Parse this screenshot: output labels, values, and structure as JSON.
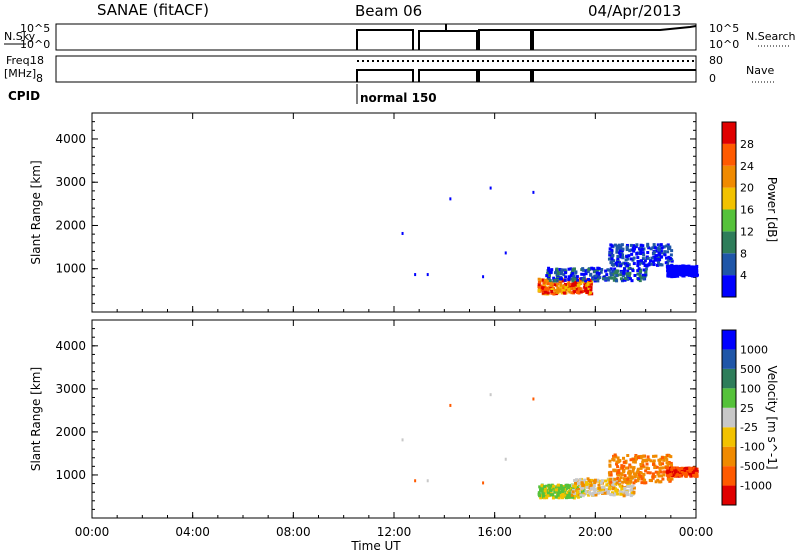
{
  "header": {
    "station": "SANAE (fitACF)",
    "beam": "Beam 06",
    "date": "04/Apr/2013"
  },
  "top_panels": {
    "nsky": {
      "label": "N.Sky",
      "tick_hi": "10^5",
      "tick_lo": "10^0"
    },
    "nsearch": {
      "label": "N.Search",
      "tick_hi": "10^5",
      "tick_lo": "10^0"
    },
    "freq": {
      "label_line1": "Freq.",
      "label_line2": "[MHz]",
      "tick_hi": "18",
      "tick_lo": "8"
    },
    "nave": {
      "label": "Nave",
      "tick_hi": "80",
      "tick_lo": "0"
    },
    "cpid": {
      "label": "CPID",
      "mode": "normal 150"
    }
  },
  "colors": {
    "power_scale": [
      "#0000ff",
      "#1f56a8",
      "#2e7d5a",
      "#55c23a",
      "#f2c200",
      "#f08a00",
      "#ff5a00",
      "#e00000"
    ],
    "velocity_scale": [
      "#e00000",
      "#ff5a00",
      "#f08a00",
      "#f2c200",
      "#c8c8c8",
      "#55c23a",
      "#2e7d5a",
      "#1f56a8",
      "#0000ff"
    ]
  },
  "chart_data": [
    {
      "type": "heatmap",
      "name": "power",
      "xlabel": "Time UT",
      "ylabel": "Slant Range [km]",
      "x_ticks": [
        "00:00",
        "04:00",
        "08:00",
        "12:00",
        "16:00",
        "20:00",
        "00:00"
      ],
      "y_ticks": [
        "1000",
        "2000",
        "3000",
        "4000"
      ],
      "ylim": [
        0,
        4600
      ],
      "xlim_hours": [
        0,
        24
      ],
      "colorbar": {
        "label": "Power [dB]",
        "ticks": [
          "4",
          "8",
          "12",
          "16",
          "20",
          "24",
          "28"
        ]
      }
    },
    {
      "type": "heatmap",
      "name": "velocity",
      "xlabel": "Time UT",
      "ylabel": "Slant Range [km]",
      "x_ticks": [
        "00:00",
        "04:00",
        "08:00",
        "12:00",
        "16:00",
        "20:00",
        "00:00"
      ],
      "y_ticks": [
        "1000",
        "2000",
        "3000",
        "4000"
      ],
      "ylim": [
        0,
        4600
      ],
      "xlim_hours": [
        0,
        24
      ],
      "colorbar": {
        "label": "Velocity [m s^-1]",
        "ticks": [
          "1000",
          "500",
          "100",
          "25",
          "-25",
          "-100",
          "-500",
          "-1000"
        ]
      }
    }
  ]
}
